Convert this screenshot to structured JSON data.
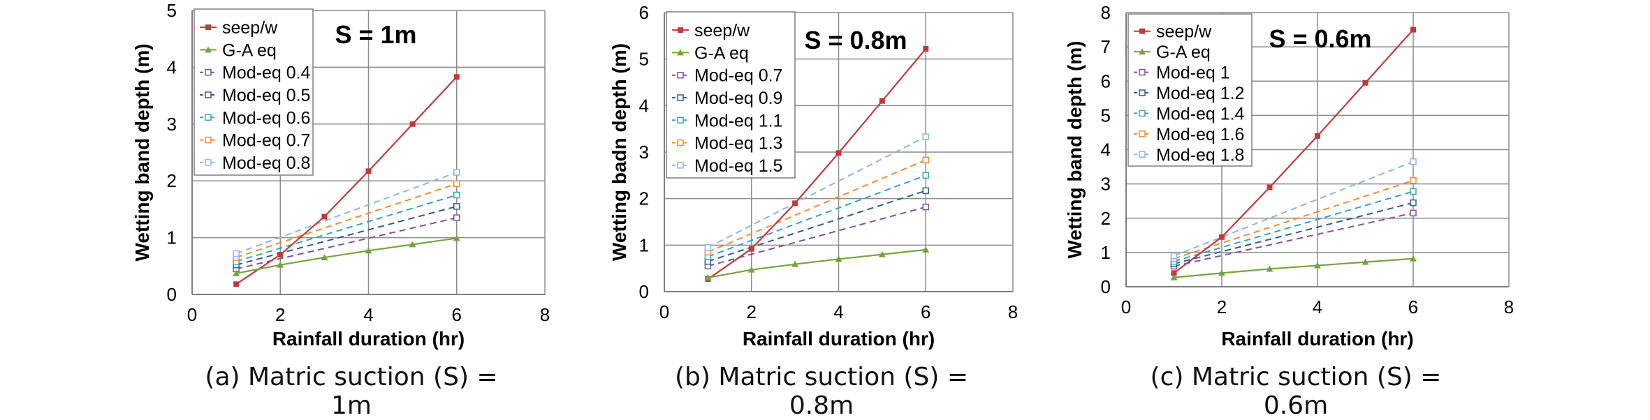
{
  "figure": {
    "captions": [
      "(a) Matric suction (S) = 1m",
      "(b) Matric suction (S) = 0.8m",
      "(c) Matric suction (S) = 0.6m"
    ]
  },
  "chart_data": [
    {
      "type": "line",
      "title": "S = 1m",
      "xlabel": "Rainfall duration (hr)",
      "ylabel": "Wetting band depth (m)",
      "xlim": [
        0,
        8
      ],
      "ylim": [
        0,
        5
      ],
      "xticks": [
        0,
        2,
        4,
        6,
        8
      ],
      "yticks": [
        0,
        1,
        2,
        3,
        4,
        5
      ],
      "grid": "major gridlines on both axes",
      "legend_position": "top-left",
      "series": [
        {
          "name": "seep/w",
          "color": "#C0393B",
          "style": "solid",
          "marker": "square-filled",
          "x": [
            1,
            2,
            3,
            4,
            5,
            6
          ],
          "y": [
            0.18,
            0.7,
            1.37,
            2.17,
            3.0,
            3.83
          ]
        },
        {
          "name": "G-A eq",
          "color": "#77A33F",
          "style": "solid",
          "marker": "triangle",
          "x": [
            1,
            2,
            3,
            4,
            5,
            6
          ],
          "y": [
            0.37,
            0.52,
            0.65,
            0.77,
            0.88,
            0.99
          ]
        },
        {
          "name": "Mod-eq 0.4",
          "color": "#7B54A5",
          "style": "dashed",
          "marker": "square-open",
          "x": [
            1,
            6
          ],
          "y": [
            0.45,
            1.35
          ]
        },
        {
          "name": "Mod-eq 0.5",
          "color": "#2E5E8E",
          "style": "dashed",
          "marker": "square-open",
          "x": [
            1,
            6
          ],
          "y": [
            0.52,
            1.55
          ]
        },
        {
          "name": "Mod-eq 0.6",
          "color": "#35A3C2",
          "style": "dashed",
          "marker": "square-open",
          "x": [
            1,
            6
          ],
          "y": [
            0.58,
            1.75
          ]
        },
        {
          "name": "Mod-eq 0.7",
          "color": "#F58A33",
          "style": "dashed",
          "marker": "square-open",
          "x": [
            1,
            6
          ],
          "y": [
            0.65,
            1.95
          ]
        },
        {
          "name": "Mod-eq 0.8",
          "color": "#8EB4E3",
          "style": "dashed",
          "marker": "square-open",
          "x": [
            1,
            6
          ],
          "y": [
            0.72,
            2.15
          ]
        }
      ]
    },
    {
      "type": "line",
      "title": "S = 0.8m",
      "xlabel": "Rainfall duration (hr)",
      "ylabel": "Wetting badn depth (m)",
      "xlim": [
        0,
        8
      ],
      "ylim": [
        0,
        6
      ],
      "xticks": [
        0,
        2,
        4,
        6,
        8
      ],
      "yticks": [
        0,
        1,
        2,
        3,
        4,
        5,
        6
      ],
      "grid": "major gridlines on both axes",
      "legend_position": "top-left",
      "series": [
        {
          "name": "seep/w",
          "color": "#C0393B",
          "style": "solid",
          "marker": "square-filled",
          "x": [
            1,
            2,
            3,
            4,
            5,
            6
          ],
          "y": [
            0.27,
            0.92,
            1.9,
            2.98,
            4.1,
            5.22
          ]
        },
        {
          "name": "G-A eq",
          "color": "#77A33F",
          "style": "solid",
          "marker": "triangle",
          "x": [
            1,
            2,
            3,
            4,
            5,
            6
          ],
          "y": [
            0.3,
            0.47,
            0.59,
            0.7,
            0.8,
            0.9
          ]
        },
        {
          "name": "Mod-eq 0.7",
          "color": "#7B54A5",
          "style": "dashed",
          "marker": "square-open",
          "x": [
            1,
            6
          ],
          "y": [
            0.55,
            1.82
          ]
        },
        {
          "name": "Mod-eq 0.9",
          "color": "#2E5E8E",
          "style": "dashed",
          "marker": "square-open",
          "x": [
            1,
            6
          ],
          "y": [
            0.65,
            2.17
          ]
        },
        {
          "name": "Mod-eq 1.1",
          "color": "#35A3C2",
          "style": "dashed",
          "marker": "square-open",
          "x": [
            1,
            6
          ],
          "y": [
            0.75,
            2.5
          ]
        },
        {
          "name": "Mod-eq 1.3",
          "color": "#F58A33",
          "style": "dashed",
          "marker": "square-open",
          "x": [
            1,
            6
          ],
          "y": [
            0.85,
            2.83
          ]
        },
        {
          "name": "Mod-eq 1.5",
          "color": "#8EB4E3",
          "style": "dashed",
          "marker": "square-open",
          "x": [
            1,
            6
          ],
          "y": [
            0.95,
            3.33
          ]
        }
      ]
    },
    {
      "type": "line",
      "title": "S = 0.6m",
      "xlabel": "Rainfall duration (hr)",
      "ylabel": "Wetting band depth (m)",
      "xlim": [
        0,
        8
      ],
      "ylim": [
        0,
        8
      ],
      "xticks": [
        0,
        2,
        4,
        6,
        8
      ],
      "yticks": [
        0,
        1,
        2,
        3,
        4,
        5,
        6,
        7,
        8
      ],
      "grid": "major gridlines on both axes",
      "legend_position": "top-left",
      "series": [
        {
          "name": "seep/w",
          "color": "#C0393B",
          "style": "solid",
          "marker": "square-filled",
          "x": [
            1,
            2,
            3,
            4,
            5,
            6
          ],
          "y": [
            0.4,
            1.45,
            2.9,
            4.4,
            5.95,
            7.5
          ]
        },
        {
          "name": "G-A eq",
          "color": "#77A33F",
          "style": "solid",
          "marker": "triangle",
          "x": [
            1,
            2,
            3,
            4,
            5,
            6
          ],
          "y": [
            0.27,
            0.4,
            0.52,
            0.62,
            0.72,
            0.82
          ]
        },
        {
          "name": "Mod-eq 1",
          "color": "#7B54A5",
          "style": "dashed",
          "marker": "square-open",
          "x": [
            1,
            6
          ],
          "y": [
            0.6,
            2.15
          ]
        },
        {
          "name": "Mod-eq 1.2",
          "color": "#2E5E8E",
          "style": "dashed",
          "marker": "square-open",
          "x": [
            1,
            6
          ],
          "y": [
            0.67,
            2.45
          ]
        },
        {
          "name": "Mod-eq 1.4",
          "color": "#35A3C2",
          "style": "dashed",
          "marker": "square-open",
          "x": [
            1,
            6
          ],
          "y": [
            0.74,
            2.78
          ]
        },
        {
          "name": "Mod-eq 1.6",
          "color": "#F58A33",
          "style": "dashed",
          "marker": "square-open",
          "x": [
            1,
            6
          ],
          "y": [
            0.82,
            3.1
          ]
        },
        {
          "name": "Mod-eq 1.8",
          "color": "#8EB4E3",
          "style": "dashed",
          "marker": "square-open",
          "x": [
            1,
            6
          ],
          "y": [
            0.9,
            3.65
          ]
        }
      ]
    }
  ]
}
